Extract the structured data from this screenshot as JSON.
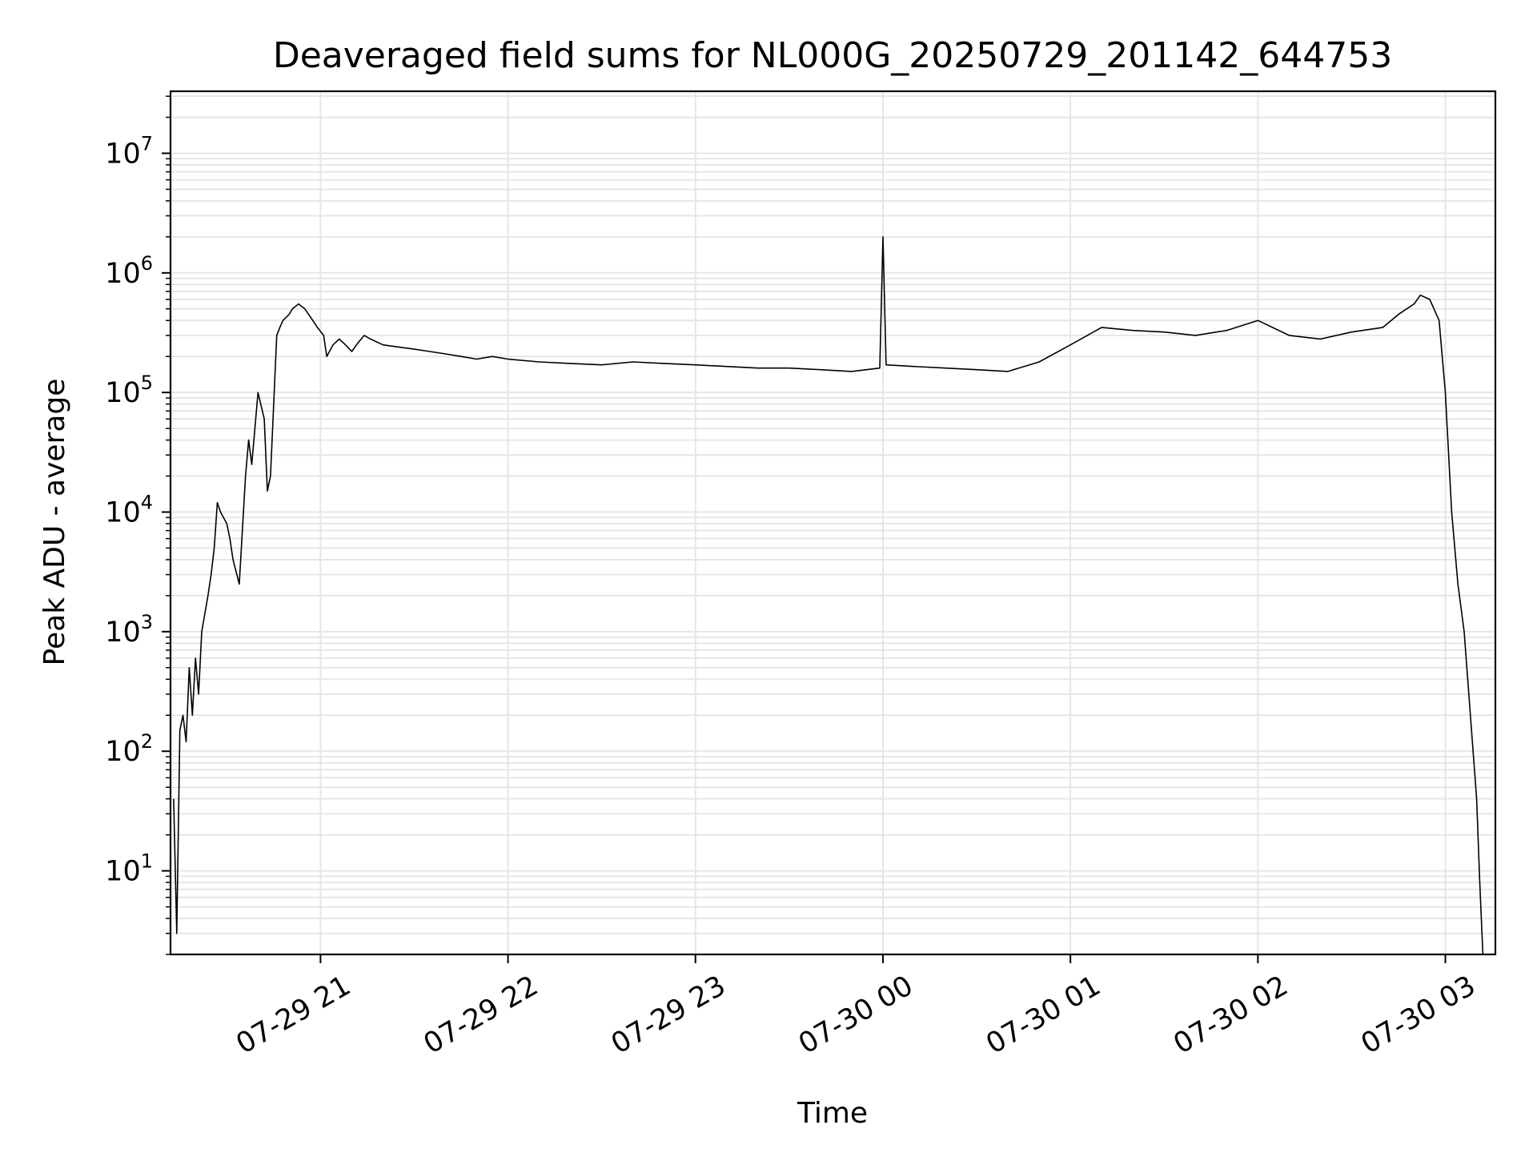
{
  "chart_data": {
    "type": "line",
    "title": "Deaveraged field sums for NL000G_20250729_201142_644753",
    "xlabel": "Time",
    "ylabel": "Peak ADU - average",
    "yscale": "log",
    "ylim": [
      2,
      33000000
    ],
    "xlim": [
      "2025-07-29 20:12",
      "2025-07-30 03:16"
    ],
    "grid": true,
    "line_color": "#000000",
    "grid_color": "#e6e6e6",
    "x_ticks": [
      {
        "value": "2025-07-29 21:00",
        "label": "07-29 21"
      },
      {
        "value": "2025-07-29 22:00",
        "label": "07-29 22"
      },
      {
        "value": "2025-07-29 23:00",
        "label": "07-29 23"
      },
      {
        "value": "2025-07-30 00:00",
        "label": "07-30 00"
      },
      {
        "value": "2025-07-30 01:00",
        "label": "07-30 01"
      },
      {
        "value": "2025-07-30 02:00",
        "label": "07-30 02"
      },
      {
        "value": "2025-07-30 03:00",
        "label": "07-30 03"
      }
    ],
    "y_ticks": [
      {
        "value": 10,
        "base": "10",
        "exp": "1"
      },
      {
        "value": 100,
        "base": "10",
        "exp": "2"
      },
      {
        "value": 1000,
        "base": "10",
        "exp": "3"
      },
      {
        "value": 10000,
        "base": "10",
        "exp": "4"
      },
      {
        "value": 100000,
        "base": "10",
        "exp": "5"
      },
      {
        "value": 1000000,
        "base": "10",
        "exp": "6"
      },
      {
        "value": 10000000,
        "base": "10",
        "exp": "7"
      }
    ],
    "series": [
      {
        "x": [
          "2025-07-29 20:13",
          "2025-07-29 20:14",
          "2025-07-29 20:15",
          "2025-07-29 20:16",
          "2025-07-29 20:17",
          "2025-07-29 20:18",
          "2025-07-29 20:19",
          "2025-07-29 20:20",
          "2025-07-29 20:21",
          "2025-07-29 20:22",
          "2025-07-29 20:24",
          "2025-07-29 20:25",
          "2025-07-29 20:26",
          "2025-07-29 20:27",
          "2025-07-29 20:28",
          "2025-07-29 20:30",
          "2025-07-29 20:31",
          "2025-07-29 20:32",
          "2025-07-29 20:34",
          "2025-07-29 20:36",
          "2025-07-29 20:37",
          "2025-07-29 20:38",
          "2025-07-29 20:40",
          "2025-07-29 20:42",
          "2025-07-29 20:43",
          "2025-07-29 20:44",
          "2025-07-29 20:46",
          "2025-07-29 20:47",
          "2025-07-29 20:48",
          "2025-07-29 20:50",
          "2025-07-29 20:51",
          "2025-07-29 20:53",
          "2025-07-29 20:55",
          "2025-07-29 20:57",
          "2025-07-29 20:59",
          "2025-07-29 21:01",
          "2025-07-29 21:02",
          "2025-07-29 21:04",
          "2025-07-29 21:06",
          "2025-07-29 21:08",
          "2025-07-29 21:10",
          "2025-07-29 21:12",
          "2025-07-29 21:14",
          "2025-07-29 21:16",
          "2025-07-29 21:20",
          "2025-07-29 21:25",
          "2025-07-29 21:30",
          "2025-07-29 21:35",
          "2025-07-29 21:40",
          "2025-07-29 21:45",
          "2025-07-29 21:50",
          "2025-07-29 21:55",
          "2025-07-29 22:00",
          "2025-07-29 22:10",
          "2025-07-29 22:20",
          "2025-07-29 22:30",
          "2025-07-29 22:40",
          "2025-07-29 22:50",
          "2025-07-29 23:00",
          "2025-07-29 23:10",
          "2025-07-29 23:20",
          "2025-07-29 23:30",
          "2025-07-29 23:40",
          "2025-07-29 23:50",
          "2025-07-29 23:59",
          "2025-07-30 00:00",
          "2025-07-30 00:01",
          "2025-07-30 00:10",
          "2025-07-30 00:20",
          "2025-07-30 00:30",
          "2025-07-30 00:40",
          "2025-07-30 00:50",
          "2025-07-30 01:00",
          "2025-07-30 01:10",
          "2025-07-30 01:20",
          "2025-07-30 01:30",
          "2025-07-30 01:40",
          "2025-07-30 01:50",
          "2025-07-30 02:00",
          "2025-07-30 02:10",
          "2025-07-30 02:20",
          "2025-07-30 02:30",
          "2025-07-30 02:40",
          "2025-07-30 02:45",
          "2025-07-30 02:50",
          "2025-07-30 02:52",
          "2025-07-30 02:55",
          "2025-07-30 02:58",
          "2025-07-30 03:00",
          "2025-07-30 03:02",
          "2025-07-30 03:04",
          "2025-07-30 03:06",
          "2025-07-30 03:08",
          "2025-07-30 03:10",
          "2025-07-30 03:11",
          "2025-07-30 03:12"
        ],
        "y": [
          40,
          3,
          150,
          200,
          120,
          500,
          200,
          600,
          300,
          1000,
          2000,
          3000,
          5000,
          12000,
          10000,
          8000,
          6000,
          4000,
          2500,
          20000,
          40000,
          25000,
          100000,
          60000,
          15000,
          20000,
          300000,
          350000,
          400000,
          450000,
          500000,
          550000,
          500000,
          420000,
          350000,
          300000,
          200000,
          250000,
          280000,
          250000,
          220000,
          260000,
          300000,
          280000,
          250000,
          240000,
          230000,
          220000,
          210000,
          200000,
          190000,
          200000,
          190000,
          180000,
          175000,
          170000,
          180000,
          175000,
          170000,
          165000,
          160000,
          160000,
          155000,
          150000,
          160000,
          2000000,
          170000,
          165000,
          160000,
          155000,
          150000,
          180000,
          250000,
          350000,
          330000,
          320000,
          300000,
          330000,
          400000,
          300000,
          280000,
          320000,
          350000,
          450000,
          550000,
          650000,
          600000,
          400000,
          100000,
          10000,
          2500,
          1000,
          200,
          40,
          8,
          2
        ]
      }
    ]
  }
}
